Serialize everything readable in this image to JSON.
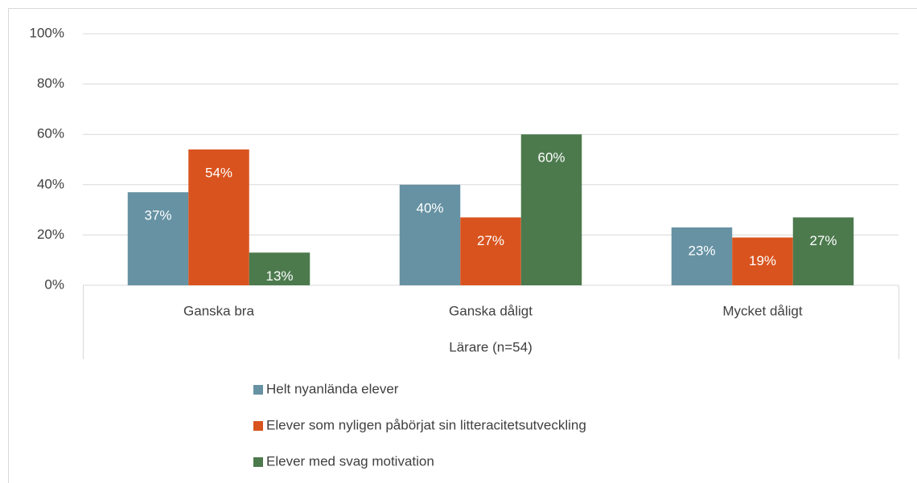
{
  "chart_data": {
    "type": "bar",
    "xlabel": "Lärare (n=54)",
    "categories": [
      "Ganska bra",
      "Ganska dåligt",
      "Mycket dåligt"
    ],
    "series": [
      {
        "name": "Helt nyanlända elever",
        "color": "#6692a3",
        "values": [
          37,
          40,
          23
        ],
        "value_labels": [
          "37%",
          "40%",
          "23%"
        ]
      },
      {
        "name": "Elever som nyligen påbörjat sin litteracitetsutveckling",
        "color": "#d9531e",
        "values": [
          54,
          27,
          19
        ],
        "value_labels": [
          "54%",
          "27%",
          "19%"
        ]
      },
      {
        "name": "Elever med svag motivation",
        "color": "#4c7a4d",
        "values": [
          13,
          60,
          27
        ],
        "value_labels": [
          "13%",
          "60%",
          "27%"
        ]
      }
    ],
    "ylim": [
      0,
      100
    ],
    "yticks": [
      {
        "value": 0,
        "label": "0%"
      },
      {
        "value": 20,
        "label": "20%"
      },
      {
        "value": 40,
        "label": "40%"
      },
      {
        "value": 60,
        "label": "60%"
      },
      {
        "value": 80,
        "label": "80%"
      },
      {
        "value": 100,
        "label": "100%"
      }
    ],
    "grid": true,
    "legend": "bottom"
  }
}
